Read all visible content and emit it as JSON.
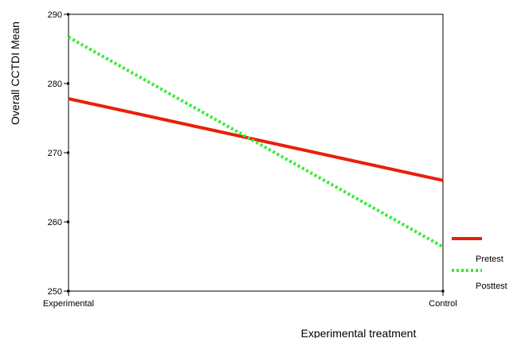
{
  "chart_data": {
    "type": "line",
    "categories": [
      "Experimental",
      "Control"
    ],
    "series": [
      {
        "name": "Pretest",
        "values": [
          277.8,
          266.0
        ],
        "color": "#e8200a",
        "style": "solid"
      },
      {
        "name": "Posttest",
        "values": [
          286.7,
          256.4
        ],
        "color": "#33ee33",
        "style": "dotted"
      }
    ],
    "xlabel": "Experimental treatment",
    "ylabel": "Overall CCTDI Mean",
    "ylim": [
      250,
      290
    ],
    "yticks": [
      "250",
      "260",
      "270",
      "280",
      "290"
    ],
    "grid": false,
    "legend_position": "bottom-right"
  }
}
